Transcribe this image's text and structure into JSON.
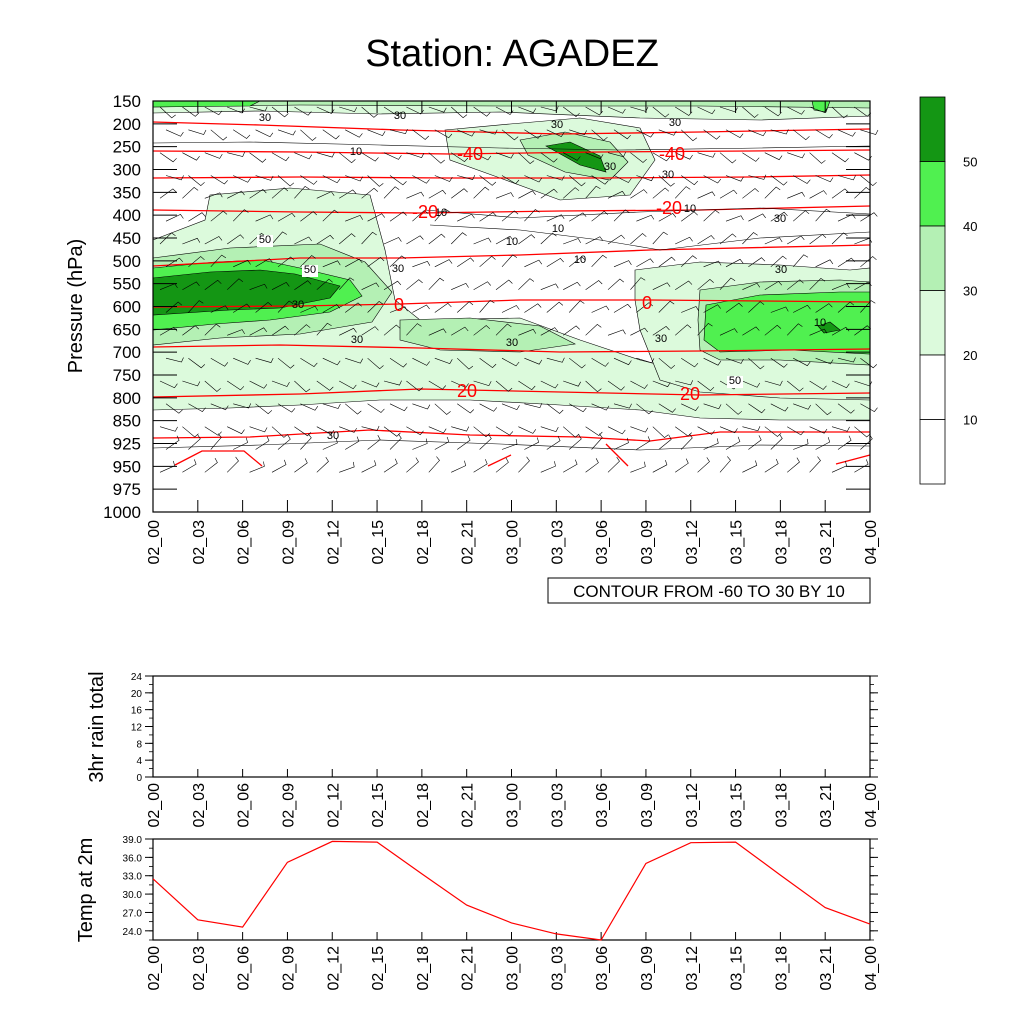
{
  "title": "Station: AGADEZ",
  "time_labels": [
    "02_00",
    "02_03",
    "02_06",
    "02_09",
    "02_12",
    "02_15",
    "02_18",
    "02_21",
    "03_00",
    "03_03",
    "03_06",
    "03_09",
    "03_12",
    "03_15",
    "03_18",
    "03_21",
    "04_00"
  ],
  "chart_data": [
    {
      "type": "heatmap",
      "panel": "upper-air",
      "ylabel": "Pressure (hPa)",
      "y_ticks": [
        150,
        200,
        250,
        300,
        350,
        400,
        450,
        500,
        550,
        600,
        650,
        700,
        750,
        800,
        850,
        925,
        950,
        975,
        1000
      ],
      "info_label": "CONTOUR FROM -60 TO 30 BY 10",
      "shading_colorbar": {
        "labels": [
          10,
          20,
          30,
          40,
          50
        ],
        "colors": [
          "#ffffff",
          "#ffffff",
          "#dcfadc",
          "#b4f0b4",
          "#50f050",
          "#149614"
        ]
      },
      "shading_labels": [
        "30",
        "30",
        "30",
        "30",
        "10",
        "10",
        "10",
        "10",
        "10",
        "10",
        "30",
        "50",
        "50",
        "30",
        "30",
        "30",
        "30",
        "30",
        "30",
        "30",
        "50",
        "30",
        "10",
        "30"
      ],
      "temperature_contour_labels": [
        "-40",
        "-40",
        "-20",
        "-20",
        "0",
        "0",
        "20",
        "20"
      ],
      "temperature_contour_color": "#ff0000"
    },
    {
      "type": "line",
      "panel": "rain",
      "ylabel": "3hr rain total",
      "ylim": [
        0,
        24
      ],
      "y_ticks": [
        "0",
        "4",
        "8",
        "12",
        "16",
        "20",
        "24"
      ],
      "series": [
        {
          "values": [
            0,
            0,
            0,
            0,
            0,
            0,
            0,
            0,
            0,
            0,
            0,
            0,
            0,
            0,
            0,
            0,
            0
          ]
        }
      ]
    },
    {
      "type": "line",
      "panel": "temperature",
      "ylabel": "Temp at 2m",
      "ylim": [
        22.5,
        39.0
      ],
      "y_ticks": [
        "24.0",
        "27.0",
        "30.0",
        "33.0",
        "36.0",
        "39.0"
      ],
      "line_color": "#ff0000",
      "series": [
        {
          "values": [
            32.5,
            25.8,
            24.6,
            35.2,
            38.6,
            38.5,
            33.3,
            28.2,
            25.3,
            23.5,
            22.5,
            35.0,
            38.4,
            38.5,
            33.1,
            27.8,
            25.1
          ]
        }
      ]
    }
  ]
}
